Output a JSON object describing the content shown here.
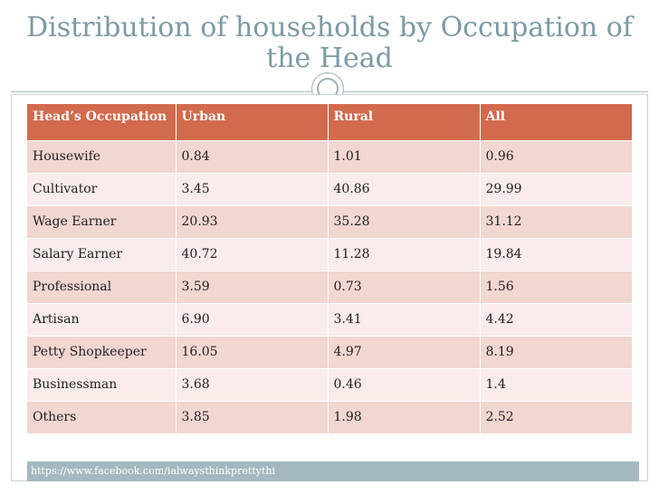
{
  "slide": {
    "title": "Distribution of households by Occupation of the Head",
    "footer_url": "https://www.facebook.com/ialwaysthinkprettythi"
  },
  "table": {
    "headers": [
      "Head’s Occupation",
      "Urban",
      "Rural",
      "All"
    ],
    "rows": [
      [
        "Housewife",
        "0.84",
        "1.01",
        "0.96"
      ],
      [
        "Cultivator",
        "3.45",
        "40.86",
        "29.99"
      ],
      [
        "Wage Earner",
        "20.93",
        "35.28",
        "31.12"
      ],
      [
        "Salary Earner",
        "40.72",
        "11.28",
        "19.84"
      ],
      [
        "Professional",
        "3.59",
        "0.73",
        "1.56"
      ],
      [
        "Artisan",
        "6.90",
        "3.41",
        "4.42"
      ],
      [
        "Petty Shopkeeper",
        "16.05",
        "4.97",
        "8.19"
      ],
      [
        "Businessman",
        "3.68",
        "0.46",
        "1.4"
      ],
      [
        "Others",
        "3.85",
        "1.98",
        "2.52"
      ]
    ]
  },
  "colors": {
    "title": "#7c9aa3",
    "header_bg": "#d26a4e",
    "row_odd": "#f2d6d0",
    "row_even": "#f9ecea",
    "footer_bg": "#a3b9bf"
  }
}
